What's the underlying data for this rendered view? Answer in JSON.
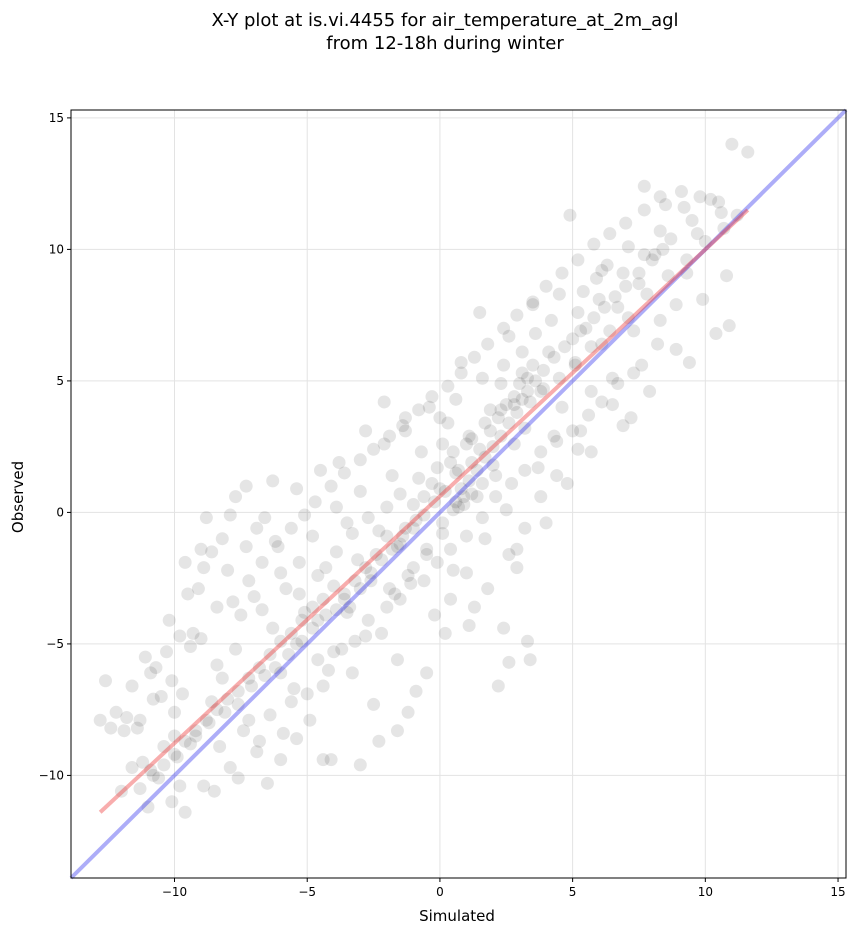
{
  "chart_data": {
    "type": "scatter",
    "title_line1": "X-Y plot at is.vi.4455 for air_temperature_at_2m_agl",
    "title_line2": "from 12-18h during winter",
    "xlabel": "Simulated",
    "ylabel": "Observed",
    "xlim": [
      -13.9,
      15.3
    ],
    "ylim": [
      -13.9,
      15.3
    ],
    "xticks": [
      -10,
      -5,
      0,
      5,
      10,
      15
    ],
    "yticks": [
      -10,
      -5,
      0,
      5,
      10,
      15
    ],
    "xtick_labels": [
      "−10",
      "−5",
      "0",
      "5",
      "10",
      "15"
    ],
    "ytick_labels": [
      "−10",
      "−5",
      "0",
      "5",
      "10",
      "15"
    ],
    "grid": true,
    "point_color": "#000000",
    "identity_line": {
      "color": "#3333ee",
      "from": [
        -13.9,
        -13.9
      ],
      "to": [
        15.3,
        15.3
      ]
    },
    "fit_line": {
      "color": "#ee3333",
      "from": [
        -12.8,
        -11.4
      ],
      "to": [
        11.6,
        11.5
      ]
    },
    "points": [
      [
        -12.6,
        -6.4
      ],
      [
        -12.8,
        -7.9
      ],
      [
        -12.4,
        -8.2
      ],
      [
        -12.2,
        -7.6
      ],
      [
        -11.9,
        -8.3
      ],
      [
        -11.8,
        -7.8
      ],
      [
        -11.4,
        -8.2
      ],
      [
        -11.2,
        -9.5
      ],
      [
        -11.1,
        -5.5
      ],
      [
        -10.9,
        -6.1
      ],
      [
        -10.8,
        -7.1
      ],
      [
        -10.5,
        -7.0
      ],
      [
        -10.2,
        -4.1
      ],
      [
        -10.1,
        -6.4
      ],
      [
        -10.0,
        -8.5
      ],
      [
        -9.8,
        -10.4
      ],
      [
        -9.6,
        -11.4
      ],
      [
        -9.4,
        -8.8
      ],
      [
        -9.3,
        -4.6
      ],
      [
        -9.1,
        -2.9
      ],
      [
        -9.0,
        -1.4
      ],
      [
        -8.8,
        -0.2
      ],
      [
        -8.6,
        -1.5
      ],
      [
        -8.5,
        -10.6
      ],
      [
        -8.4,
        -5.8
      ],
      [
        -8.2,
        -6.3
      ],
      [
        -8.0,
        -2.2
      ],
      [
        -7.9,
        -0.1
      ],
      [
        -7.7,
        -5.2
      ],
      [
        -7.5,
        -3.9
      ],
      [
        -7.3,
        1.0
      ],
      [
        -7.2,
        -7.9
      ],
      [
        -7.0,
        -3.2
      ],
      [
        -6.8,
        -8.7
      ],
      [
        -6.6,
        -0.2
      ],
      [
        -6.5,
        -10.3
      ],
      [
        -6.3,
        -4.4
      ],
      [
        -6.1,
        -1.3
      ],
      [
        -6.0,
        -6.1
      ],
      [
        -5.8,
        -2.9
      ],
      [
        -5.6,
        -7.2
      ],
      [
        -5.4,
        -5.0
      ],
      [
        -5.3,
        -1.9
      ],
      [
        -5.1,
        -3.8
      ],
      [
        -4.9,
        -7.9
      ],
      [
        -4.8,
        -0.9
      ],
      [
        -4.6,
        -4.1
      ],
      [
        -4.4,
        -6.6
      ],
      [
        -4.3,
        -2.1
      ],
      [
        -4.1,
        -9.4
      ],
      [
        -4.0,
        -5.3
      ],
      [
        -3.8,
        1.9
      ],
      [
        -3.6,
        -3.3
      ],
      [
        -3.5,
        -0.4
      ],
      [
        -3.3,
        -6.1
      ],
      [
        -3.1,
        -1.8
      ],
      [
        -3.0,
        0.8
      ],
      [
        -2.8,
        -4.7
      ],
      [
        -2.6,
        -2.6
      ],
      [
        -2.5,
        -7.3
      ],
      [
        -2.3,
        -0.7
      ],
      [
        -2.1,
        4.2
      ],
      [
        -2.0,
        -3.6
      ],
      [
        -1.8,
        1.4
      ],
      [
        -1.6,
        -5.6
      ],
      [
        -1.5,
        -1.2
      ],
      [
        -1.3,
        3.6
      ],
      [
        -1.2,
        -2.4
      ],
      [
        -1.0,
        0.3
      ],
      [
        -0.9,
        -6.8
      ],
      [
        -0.7,
        2.3
      ],
      [
        -0.5,
        -1.6
      ],
      [
        -0.4,
        4.0
      ],
      [
        -0.2,
        -3.9
      ],
      [
        0.0,
        0.9
      ],
      [
        0.1,
        -0.8
      ],
      [
        0.3,
        3.4
      ],
      [
        0.5,
        -2.2
      ],
      [
        0.6,
        1.5
      ],
      [
        0.8,
        5.7
      ],
      [
        0.9,
        0.3
      ],
      [
        1.1,
        -4.3
      ],
      [
        1.2,
        2.8
      ],
      [
        1.4,
        0.6
      ],
      [
        1.5,
        7.6
      ],
      [
        1.7,
        -1.0
      ],
      [
        1.9,
        3.9
      ],
      [
        2.0,
        1.8
      ],
      [
        2.2,
        -6.6
      ],
      [
        2.3,
        4.9
      ],
      [
        2.5,
        0.1
      ],
      [
        2.6,
        6.7
      ],
      [
        2.8,
        2.6
      ],
      [
        2.9,
        -1.4
      ],
      [
        3.1,
        5.3
      ],
      [
        3.2,
        3.2
      ],
      [
        3.4,
        -5.6
      ],
      [
        3.5,
        7.9
      ],
      [
        3.7,
        1.7
      ],
      [
        3.8,
        4.6
      ],
      [
        4.0,
        -0.4
      ],
      [
        4.1,
        6.1
      ],
      [
        4.3,
        2.9
      ],
      [
        4.5,
        8.3
      ],
      [
        4.6,
        4.0
      ],
      [
        4.8,
        1.1
      ],
      [
        4.9,
        11.3
      ],
      [
        5.1,
        5.6
      ],
      [
        5.3,
        3.1
      ],
      [
        5.5,
        7.0
      ],
      [
        5.7,
        2.3
      ],
      [
        5.9,
        8.9
      ],
      [
        6.1,
        6.4
      ],
      [
        6.3,
        9.4
      ],
      [
        6.5,
        5.1
      ],
      [
        6.7,
        7.8
      ],
      [
        6.9,
        3.3
      ],
      [
        7.1,
        10.1
      ],
      [
        7.3,
        6.9
      ],
      [
        7.5,
        8.7
      ],
      [
        7.7,
        12.4
      ],
      [
        7.9,
        4.6
      ],
      [
        8.1,
        9.8
      ],
      [
        8.3,
        7.3
      ],
      [
        8.5,
        11.7
      ],
      [
        8.7,
        10.4
      ],
      [
        8.9,
        6.2
      ],
      [
        9.1,
        12.2
      ],
      [
        9.3,
        9.1
      ],
      [
        9.5,
        11.1
      ],
      [
        9.7,
        10.6
      ],
      [
        9.9,
        8.1
      ],
      [
        10.2,
        11.9
      ],
      [
        10.4,
        6.8
      ],
      [
        10.6,
        11.4
      ],
      [
        10.8,
        9.0
      ],
      [
        11.0,
        14.0
      ],
      [
        11.6,
        13.7
      ],
      [
        10.9,
        7.1
      ],
      [
        9.4,
        5.7
      ],
      [
        -10.6,
        -10.1
      ],
      [
        -9.9,
        -9.3
      ],
      [
        -9.2,
        -8.5
      ],
      [
        -8.7,
        -8.0
      ],
      [
        -8.1,
        -7.6
      ],
      [
        -7.6,
        -7.3
      ],
      [
        -7.1,
        -6.6
      ],
      [
        -6.6,
        -6.2
      ],
      [
        -6.2,
        -5.9
      ],
      [
        -5.7,
        -5.4
      ],
      [
        -5.2,
        -4.9
      ],
      [
        -4.8,
        -4.4
      ],
      [
        -4.3,
        -3.9
      ],
      [
        -3.9,
        -3.7
      ],
      [
        -3.5,
        -3.8
      ],
      [
        -3.4,
        -3.6
      ],
      [
        -3.0,
        -2.9
      ],
      [
        -2.6,
        -2.3
      ],
      [
        -2.2,
        -1.8
      ],
      [
        -1.8,
        -1.4
      ],
      [
        -1.4,
        -0.9
      ],
      [
        -1.0,
        -0.6
      ],
      [
        -0.6,
        -0.1
      ],
      [
        -0.2,
        0.4
      ],
      [
        0.2,
        0.8
      ],
      [
        0.6,
        0.4
      ],
      [
        0.7,
        0.2
      ],
      [
        0.9,
        0.6
      ],
      [
        1.1,
        1.2
      ],
      [
        1.4,
        1.6
      ],
      [
        1.7,
        2.1
      ],
      [
        2.0,
        2.5
      ],
      [
        2.3,
        2.9
      ],
      [
        2.6,
        3.4
      ],
      [
        2.9,
        3.8
      ],
      [
        3.1,
        4.3
      ],
      [
        3.3,
        4.6
      ],
      [
        3.6,
        5.0
      ],
      [
        3.9,
        5.4
      ],
      [
        4.3,
        5.9
      ],
      [
        4.7,
        6.3
      ],
      [
        5.0,
        6.6
      ],
      [
        5.3,
        6.9
      ],
      [
        5.8,
        7.4
      ],
      [
        6.2,
        7.8
      ],
      [
        6.6,
        8.2
      ],
      [
        7.0,
        8.6
      ],
      [
        7.5,
        9.1
      ],
      [
        8.0,
        9.6
      ],
      [
        8.4,
        10.0
      ],
      [
        -11.6,
        -9.7
      ],
      [
        -11.3,
        -10.5
      ],
      [
        -10.9,
        -9.8
      ],
      [
        -10.4,
        -8.9
      ],
      [
        -10.0,
        -7.6
      ],
      [
        -9.7,
        -6.9
      ],
      [
        -9.4,
        -5.1
      ],
      [
        -9.0,
        -4.8
      ],
      [
        -8.6,
        -7.2
      ],
      [
        -8.3,
        -8.9
      ],
      [
        -7.9,
        -9.7
      ],
      [
        -7.4,
        -8.3
      ],
      [
        -6.9,
        -9.1
      ],
      [
        -6.4,
        -7.7
      ],
      [
        -5.9,
        -8.4
      ],
      [
        -5.5,
        -6.7
      ],
      [
        -5.0,
        -6.9
      ],
      [
        -4.6,
        -5.6
      ],
      [
        -4.2,
        -6.0
      ],
      [
        -3.7,
        -5.2
      ],
      [
        -3.2,
        -4.9
      ],
      [
        -2.7,
        -4.1
      ],
      [
        -2.2,
        -4.6
      ],
      [
        -1.7,
        -3.1
      ],
      [
        -1.1,
        -2.7
      ],
      [
        -0.6,
        -2.6
      ],
      [
        -0.1,
        -1.9
      ],
      [
        0.4,
        -1.4
      ],
      [
        1.0,
        -0.9
      ],
      [
        1.6,
        -0.2
      ],
      [
        2.1,
        0.6
      ],
      [
        2.7,
        1.1
      ],
      [
        3.2,
        1.6
      ],
      [
        3.8,
        2.3
      ],
      [
        4.4,
        2.7
      ],
      [
        5.0,
        3.1
      ],
      [
        5.6,
        3.7
      ],
      [
        6.1,
        4.2
      ],
      [
        6.7,
        4.9
      ],
      [
        7.3,
        5.3
      ],
      [
        -7.8,
        -3.4
      ],
      [
        -7.2,
        -2.6
      ],
      [
        -6.7,
        -1.9
      ],
      [
        -6.2,
        -1.1
      ],
      [
        -5.6,
        -0.6
      ],
      [
        -5.1,
        -0.1
      ],
      [
        -4.7,
        0.4
      ],
      [
        -4.1,
        1.0
      ],
      [
        -3.6,
        1.5
      ],
      [
        -3.0,
        2.0
      ],
      [
        -2.5,
        2.4
      ],
      [
        -1.9,
        2.9
      ],
      [
        -1.4,
        3.3
      ],
      [
        -0.8,
        3.9
      ],
      [
        -0.3,
        4.4
      ],
      [
        0.3,
        4.8
      ],
      [
        0.8,
        5.3
      ],
      [
        1.3,
        5.9
      ],
      [
        1.8,
        6.4
      ],
      [
        2.4,
        7.0
      ],
      [
        2.9,
        7.5
      ],
      [
        3.5,
        8.0
      ],
      [
        4.0,
        8.6
      ],
      [
        4.6,
        9.1
      ],
      [
        5.2,
        9.6
      ],
      [
        5.8,
        10.2
      ],
      [
        6.4,
        10.6
      ],
      [
        7.0,
        11.0
      ],
      [
        7.7,
        11.5
      ],
      [
        8.3,
        12.0
      ],
      [
        1.0,
        -2.3
      ],
      [
        1.3,
        -3.6
      ],
      [
        1.8,
        -2.9
      ],
      [
        2.4,
        -4.4
      ],
      [
        2.9,
        -2.1
      ],
      [
        3.3,
        -4.9
      ],
      [
        2.6,
        -5.7
      ],
      [
        0.4,
        -3.3
      ],
      [
        0.2,
        -4.6
      ],
      [
        -0.5,
        -6.1
      ],
      [
        -1.2,
        -7.6
      ],
      [
        -1.6,
        -8.3
      ],
      [
        -2.3,
        -8.7
      ],
      [
        -3.0,
        -9.6
      ],
      [
        -4.4,
        -9.4
      ],
      [
        -5.4,
        -8.6
      ],
      [
        -6.0,
        -9.4
      ],
      [
        -7.6,
        -10.1
      ],
      [
        -8.9,
        -10.4
      ],
      [
        -10.1,
        -11.0
      ],
      [
        -11.0,
        -11.2
      ],
      [
        -12.0,
        -10.6
      ],
      [
        -9.6,
        -1.9
      ],
      [
        -8.4,
        -3.6
      ],
      [
        -7.7,
        0.6
      ],
      [
        -6.9,
        -0.6
      ],
      [
        -6.3,
        1.2
      ],
      [
        -5.4,
        0.9
      ],
      [
        -4.5,
        1.6
      ],
      [
        -3.9,
        0.2
      ],
      [
        -2.8,
        3.1
      ],
      [
        -2.1,
        2.6
      ],
      [
        -1.3,
        3.1
      ],
      [
        0.0,
        3.6
      ],
      [
        0.6,
        4.3
      ],
      [
        1.0,
        2.6
      ],
      [
        1.6,
        5.1
      ],
      [
        2.4,
        5.6
      ],
      [
        3.1,
        6.1
      ],
      [
        3.6,
        6.8
      ],
      [
        4.2,
        7.3
      ],
      [
        5.2,
        7.6
      ],
      [
        6.0,
        8.1
      ],
      [
        6.9,
        9.1
      ],
      [
        7.7,
        9.8
      ],
      [
        8.3,
        10.7
      ],
      [
        9.2,
        11.6
      ],
      [
        9.8,
        12.0
      ],
      [
        10.5,
        11.8
      ],
      [
        8.9,
        7.9
      ],
      [
        8.2,
        6.4
      ],
      [
        7.6,
        5.6
      ],
      [
        7.2,
        3.6
      ],
      [
        6.5,
        4.1
      ],
      [
        5.7,
        4.6
      ],
      [
        5.2,
        2.4
      ],
      [
        4.4,
        1.4
      ],
      [
        3.8,
        0.6
      ],
      [
        3.2,
        -0.6
      ],
      [
        2.6,
        -1.6
      ],
      [
        -1.9,
        -2.9
      ],
      [
        -1.5,
        -3.3
      ],
      [
        -1.0,
        -2.1
      ],
      [
        -0.5,
        -1.4
      ],
      [
        0.1,
        -0.4
      ],
      [
        0.5,
        0.1
      ],
      [
        0.8,
        0.9
      ],
      [
        1.2,
        1.9
      ],
      [
        1.5,
        2.4
      ],
      [
        1.9,
        3.1
      ],
      [
        2.2,
        3.6
      ],
      [
        2.5,
        4.1
      ],
      [
        2.8,
        4.4
      ],
      [
        3.0,
        4.9
      ],
      [
        3.3,
        5.1
      ],
      [
        3.5,
        5.6
      ],
      [
        2.1,
        1.4
      ],
      [
        1.6,
        1.1
      ],
      [
        1.2,
        0.7
      ],
      [
        0.7,
        1.6
      ],
      [
        0.4,
        1.9
      ],
      [
        0.1,
        2.6
      ],
      [
        -0.3,
        1.1
      ],
      [
        -0.6,
        0.6
      ],
      [
        -0.9,
        -0.3
      ],
      [
        -1.3,
        -0.6
      ],
      [
        -1.6,
        -1.3
      ],
      [
        -2.0,
        -0.9
      ],
      [
        -2.4,
        -1.6
      ],
      [
        -2.8,
        -2.1
      ],
      [
        -3.2,
        -2.6
      ],
      [
        -3.6,
        -3.1
      ],
      [
        -4.0,
        -2.8
      ],
      [
        -4.4,
        -3.3
      ],
      [
        -4.8,
        -3.6
      ],
      [
        -5.2,
        -4.1
      ],
      [
        -5.6,
        -4.6
      ],
      [
        -6.0,
        -4.9
      ],
      [
        -6.4,
        -5.4
      ],
      [
        -6.8,
        -5.9
      ],
      [
        -7.2,
        -6.3
      ],
      [
        -7.6,
        -6.8
      ],
      [
        -8.0,
        -7.1
      ],
      [
        -8.4,
        -7.5
      ],
      [
        -8.8,
        -7.9
      ],
      [
        -9.2,
        -8.3
      ],
      [
        -9.6,
        -8.7
      ],
      [
        -10.0,
        -9.2
      ],
      [
        -10.4,
        -9.6
      ],
      [
        -10.8,
        -10.0
      ],
      [
        -11.6,
        -6.6
      ],
      [
        -11.3,
        -7.9
      ],
      [
        -10.7,
        -5.9
      ],
      [
        -10.3,
        -5.3
      ],
      [
        -9.8,
        -4.7
      ],
      [
        -9.5,
        -3.1
      ],
      [
        -8.9,
        -2.1
      ],
      [
        -8.2,
        -1.0
      ],
      [
        -7.3,
        -1.3
      ],
      [
        -6.7,
        -3.7
      ],
      [
        -6.0,
        -2.3
      ],
      [
        -5.3,
        -3.1
      ],
      [
        -4.6,
        -2.4
      ],
      [
        -3.9,
        -1.5
      ],
      [
        -3.3,
        -0.8
      ],
      [
        -2.7,
        -0.2
      ],
      [
        -2.0,
        0.2
      ],
      [
        -1.5,
        0.7
      ],
      [
        -0.8,
        1.3
      ],
      [
        -0.1,
        1.7
      ],
      [
        0.5,
        2.3
      ],
      [
        1.1,
        2.9
      ],
      [
        1.7,
        3.4
      ],
      [
        2.3,
        3.9
      ],
      [
        2.8,
        4.1
      ],
      [
        3.4,
        4.2
      ],
      [
        3.9,
        4.7
      ],
      [
        4.5,
        5.1
      ],
      [
        5.1,
        5.7
      ],
      [
        5.7,
        6.3
      ],
      [
        6.4,
        6.9
      ],
      [
        7.1,
        7.4
      ],
      [
        7.8,
        8.3
      ],
      [
        8.6,
        9.0
      ],
      [
        9.3,
        9.6
      ],
      [
        10.0,
        10.3
      ],
      [
        10.7,
        10.8
      ],
      [
        11.2,
        11.3
      ],
      [
        6.1,
        9.2
      ],
      [
        5.4,
        8.4
      ]
    ]
  }
}
